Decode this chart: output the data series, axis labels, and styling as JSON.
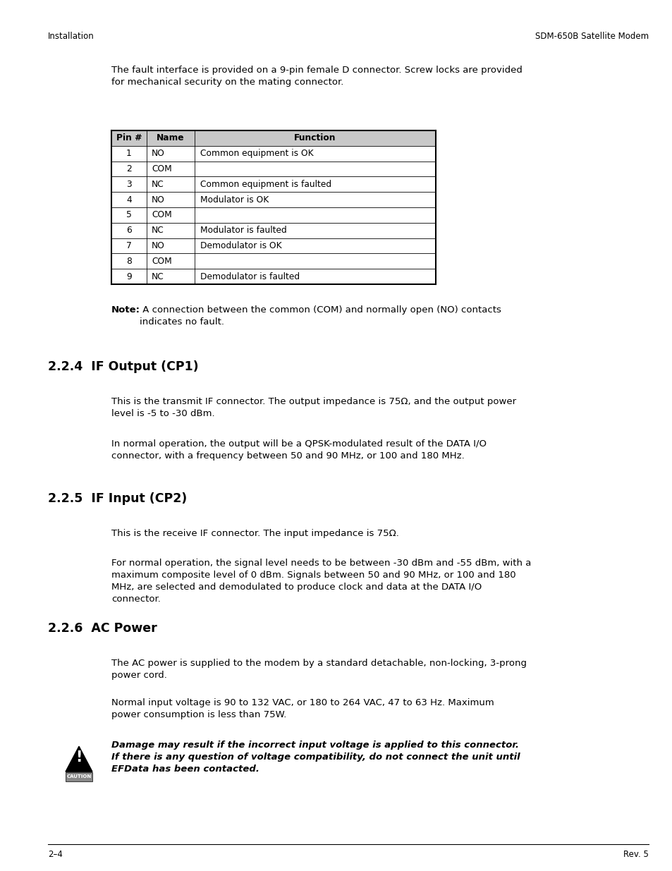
{
  "header_left": "Installation",
  "header_right": "SDM-650B Satellite Modem",
  "footer_left": "2–4",
  "footer_right": "Rev. 5",
  "intro_text": "The fault interface is provided on a 9-pin female D connector. Screw locks are provided\nfor mechanical security on the mating connector.",
  "table_headers": [
    "Pin #",
    "Name",
    "Function"
  ],
  "table_rows": [
    [
      "1",
      "NO",
      "Common equipment is OK"
    ],
    [
      "2",
      "COM",
      ""
    ],
    [
      "3",
      "NC",
      "Common equipment is faulted"
    ],
    [
      "4",
      "NO",
      "Modulator is OK"
    ],
    [
      "5",
      "COM",
      ""
    ],
    [
      "6",
      "NC",
      "Modulator is faulted"
    ],
    [
      "7",
      "NO",
      "Demodulator is OK"
    ],
    [
      "8",
      "COM",
      ""
    ],
    [
      "9",
      "NC",
      "Demodulator is faulted"
    ]
  ],
  "note_label": "Note:",
  "note_rest": " A connection between the common (COM) and normally open (NO) contacts\nindicates no fault.",
  "section_224_title": "2.2.4  IF Output (CP1)",
  "section_224_para1": "This is the transmit IF connector. The output impedance is 75Ω, and the output power\nlevel is -5 to -30 dBm.",
  "section_224_para2": "In normal operation, the output will be a QPSK-modulated result of the DATA I/O\nconnector, with a frequency between 50 and 90 MHz, or 100 and 180 MHz.",
  "section_225_title": "2.2.5  IF Input (CP2)",
  "section_225_para1": "This is the receive IF connector. The input impedance is 75Ω.",
  "section_225_para2": "For normal operation, the signal level needs to be between -30 dBm and -55 dBm, with a\nmaximum composite level of 0 dBm. Signals between 50 and 90 MHz, or 100 and 180\nMHz, are selected and demodulated to produce clock and data at the DATA I/O\nconnector.",
  "section_226_title": "2.2.6  AC Power",
  "section_226_para1": "The AC power is supplied to the modem by a standard detachable, non-locking, 3-prong\npower cord.",
  "section_226_para2": "Normal input voltage is 90 to 132 VAC, or 180 to 264 VAC, 47 to 63 Hz. Maximum\npower consumption is less than 75W.",
  "caution_text": "Damage may result if the incorrect input voltage is applied to this connector.\nIf there is any question of voltage compatibility, do not connect the unit until\nEFData has been contacted.",
  "bg_color": "#ffffff",
  "text_color": "#000000"
}
